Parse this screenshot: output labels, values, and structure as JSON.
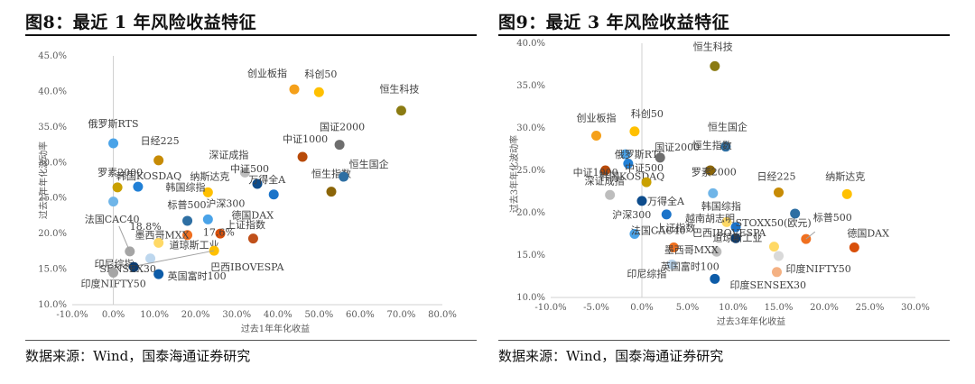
{
  "figures": [
    {
      "title": "图8：最近 1 年风险收益特征",
      "source": "数据来源：Wind，国泰海通证券研究"
    },
    {
      "title": "图9：最近 3 年风险收益特征",
      "source": "数据来源：Wind，国泰海通证券研究"
    }
  ],
  "chart_data": [
    {
      "type": "scatter",
      "title": "图8：最近 1 年风险收益特征",
      "xlabel": "过去1年年化收益",
      "ylabel": "过去1年年化波动率",
      "xlim": [
        -0.1,
        0.8
      ],
      "ylim": [
        0.1,
        0.45
      ],
      "xticks": [
        -0.1,
        0.0,
        0.1,
        0.2,
        0.3,
        0.4,
        0.5,
        0.6,
        0.7,
        0.8
      ],
      "yticks": [
        0.1,
        0.15,
        0.2,
        0.25,
        0.3,
        0.35,
        0.4,
        0.45
      ],
      "tick_format": "percent1",
      "points": [
        {
          "label": "创业板指",
          "x": 0.44,
          "y": 0.403,
          "color": "#f5a01a"
        },
        {
          "label": "科创50",
          "x": 0.5,
          "y": 0.399,
          "color": "#ffc000"
        },
        {
          "label": "恒生科技",
          "x": 0.7,
          "y": 0.373,
          "color": "#8b7b12"
        },
        {
          "label": "俄罗斯RTS",
          "x": 0.0,
          "y": 0.327,
          "color": "#4aa3e8"
        },
        {
          "label": "日经225",
          "x": 0.11,
          "y": 0.303,
          "color": "#c78b05"
        },
        {
          "label": "国证2000",
          "x": 0.55,
          "y": 0.325,
          "color": "#6e6e6e"
        },
        {
          "label": "中证1000",
          "x": 0.46,
          "y": 0.308,
          "color": "#b84a08"
        },
        {
          "label": "深证成指",
          "x": 0.32,
          "y": 0.286,
          "color": "#bdbdbd"
        },
        {
          "label": "中证500",
          "x": 0.35,
          "y": 0.27,
          "color": "#0d4c8c"
        },
        {
          "label": "万得全A",
          "x": 0.39,
          "y": 0.255,
          "color": "#1a73c9"
        },
        {
          "label": "恒生指数",
          "x": 0.53,
          "y": 0.259,
          "color": "#8b6508"
        },
        {
          "label": "恒生国企",
          "x": 0.56,
          "y": 0.28,
          "color": "#2e6fa3"
        },
        {
          "label": "纳斯达克",
          "x": 0.23,
          "y": 0.258,
          "color": "#ffc000"
        },
        {
          "label": "罗素2000",
          "x": 0.01,
          "y": 0.265,
          "color": "#c9a000"
        },
        {
          "label": "韩国KOSDAQ",
          "x": 0.06,
          "y": 0.266,
          "color": "#2180d6"
        },
        {
          "label": "沪深300",
          "x": 0.23,
          "y": 0.22,
          "color": "#4aa3e8"
        },
        {
          "label": "标普500",
          "x": 0.18,
          "y": 0.218,
          "color": "#2e6fa3"
        },
        {
          "label": "韩国综指",
          "x": 0.0,
          "y": 0.245,
          "color": "#6fb5e8"
        },
        {
          "label": "上证指数",
          "x": 0.26,
          "y": 0.2,
          "color": "#d84f0a"
        },
        {
          "label": "德国DAX",
          "x": 0.34,
          "y": 0.193,
          "color": "#c0501a"
        },
        {
          "label": "墨西哥MXX",
          "x": 0.18,
          "y": 0.198,
          "color": "#f07020"
        },
        {
          "label": "法国CAC40",
          "x": 0.04,
          "y": 0.175,
          "color": "#a5a5a5"
        },
        {
          "label": "道琼斯工业",
          "x": 0.11,
          "y": 0.187,
          "color": "#ffd966"
        },
        {
          "label": "巴西IBOVESPA",
          "x": 0.245,
          "y": 0.176,
          "color": "#ffc000"
        },
        {
          "label": "印尼综指",
          "x": 0.09,
          "y": 0.165,
          "color": "#bdd7ee"
        },
        {
          "label": "SENSEX30",
          "x": 0.05,
          "y": 0.153,
          "color": "#0d3b6e"
        },
        {
          "label": "英国富时100",
          "x": 0.11,
          "y": 0.143,
          "color": "#0d5ca8"
        },
        {
          "label": "印度NIFTY50",
          "x": 0.0,
          "y": 0.145,
          "color": "#a5a5a5"
        }
      ],
      "annotations": [
        "18.8%",
        "17.6%"
      ]
    },
    {
      "type": "scatter",
      "title": "图9：最近 3 年风险收益特征",
      "xlabel": "过去3年年化收益",
      "ylabel": "过去3年年化波动率",
      "xlim": [
        -0.1,
        0.3
      ],
      "ylim": [
        0.1,
        0.4
      ],
      "xticks": [
        -0.1,
        -0.05,
        0.0,
        0.05,
        0.1,
        0.15,
        0.2,
        0.25,
        0.3
      ],
      "yticks": [
        0.1,
        0.15,
        0.2,
        0.25,
        0.3,
        0.35,
        0.4
      ],
      "tick_format": "percent1",
      "points": [
        {
          "label": "恒生科技",
          "x": 0.08,
          "y": 0.373,
          "color": "#8b7b12"
        },
        {
          "label": "创业板指",
          "x": -0.05,
          "y": 0.291,
          "color": "#f5a01a"
        },
        {
          "label": "科创50",
          "x": -0.008,
          "y": 0.296,
          "color": "#ffc000"
        },
        {
          "label": "俄罗斯RTS",
          "x": -0.018,
          "y": 0.269,
          "color": "#4aa3e8"
        },
        {
          "label": "国证2000",
          "x": 0.02,
          "y": 0.265,
          "color": "#6e6e6e"
        },
        {
          "label": "恒生国企",
          "x": 0.092,
          "y": 0.278,
          "color": "#2e6fa3"
        },
        {
          "label": "恒生指数",
          "x": 0.075,
          "y": 0.25,
          "color": "#8b6508"
        },
        {
          "label": "中证1000",
          "x": -0.04,
          "y": 0.25,
          "color": "#b84a08"
        },
        {
          "label": "韩国KOSDAQ",
          "x": -0.015,
          "y": 0.258,
          "color": "#2180d6"
        },
        {
          "label": "深证成指",
          "x": -0.035,
          "y": 0.221,
          "color": "#bdbdbd"
        },
        {
          "label": "中证500",
          "x": 0.005,
          "y": 0.236,
          "color": "#c9a000"
        },
        {
          "label": "万得全A",
          "x": 0.0,
          "y": 0.214,
          "color": "#0d4c8c"
        },
        {
          "label": "日经225",
          "x": 0.15,
          "y": 0.224,
          "color": "#c78b05"
        },
        {
          "label": "纳斯达克",
          "x": 0.225,
          "y": 0.222,
          "color": "#ffc000"
        },
        {
          "label": "罗素2000",
          "x": 0.078,
          "y": 0.223,
          "color": "#6fb5e8"
        },
        {
          "label": "韩国综指",
          "x": 0.093,
          "y": 0.189,
          "color": "#ffd966"
        },
        {
          "label": "越南胡志明",
          "x": 0.103,
          "y": 0.183,
          "color": "#1a73c9"
        },
        {
          "label": "STOXX50(欧元)",
          "x": 0.168,
          "y": 0.199,
          "color": "#2e6fa3"
        },
        {
          "label": "沪深300",
          "x": 0.027,
          "y": 0.198,
          "color": "#1a73c9"
        },
        {
          "label": "巴西IBOVESPA",
          "x": 0.103,
          "y": 0.17,
          "color": "#0d3b6e"
        },
        {
          "label": "标普500",
          "x": 0.18,
          "y": 0.169,
          "color": "#f07020"
        },
        {
          "label": "德国DAX",
          "x": 0.233,
          "y": 0.159,
          "color": "#d84f0a"
        },
        {
          "label": "法国CAC40",
          "x": -0.008,
          "y": 0.175,
          "color": "#4aa3e8"
        },
        {
          "label": "上证指数",
          "x": 0.035,
          "y": 0.159,
          "color": "#f07020"
        },
        {
          "label": "墨西哥MXX",
          "x": 0.082,
          "y": 0.154,
          "color": "#bdbdbd"
        },
        {
          "label": "道琼斯工业",
          "x": 0.145,
          "y": 0.16,
          "color": "#ffd966"
        },
        {
          "label": "印度NIFTY50",
          "x": 0.15,
          "y": 0.149,
          "color": "#d9d9d9"
        },
        {
          "label": "印尼综指",
          "x": 0.033,
          "y": 0.139,
          "color": "#bdd7ee"
        },
        {
          "label": "英国富时100",
          "x": 0.08,
          "y": 0.122,
          "color": "#0d5ca8"
        },
        {
          "label": "印度SENSEX30",
          "x": 0.148,
          "y": 0.13,
          "color": "#f4b183"
        }
      ],
      "annotations": []
    }
  ]
}
